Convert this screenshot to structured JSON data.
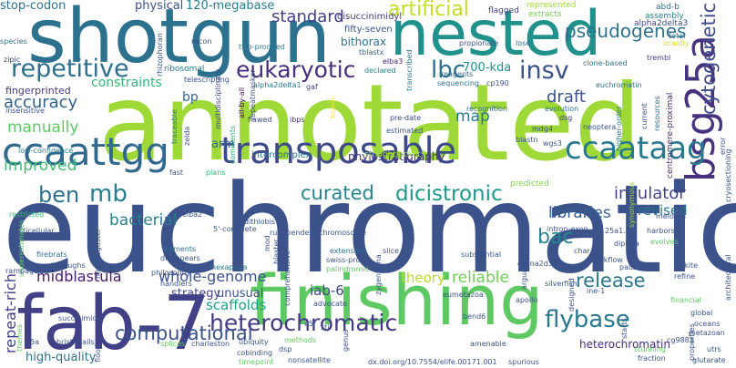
{
  "word_cloud": {
    "words": [
      {
        "id": "annotated",
        "text": "annotated",
        "color": "#9fd938"
      },
      {
        "id": "euchromatic",
        "text": "euchromatic",
        "color": "#3b528b"
      },
      {
        "id": "shotgun",
        "text": "shotgun",
        "color": "#2c718e"
      },
      {
        "id": "nested",
        "text": "nested",
        "color": "#21918c"
      },
      {
        "id": "fab-7",
        "text": "fab-7",
        "color": "#424086"
      },
      {
        "id": "finishing",
        "text": "finishing",
        "color": "#5ec962"
      },
      {
        "id": "ccaattgg",
        "text": "ccaattgg",
        "color": "#31688e"
      },
      {
        "id": "transposable",
        "text": "transposable",
        "color": "#3e4989"
      },
      {
        "id": "bsg25a",
        "text": "bsg25a",
        "color": "#46327e"
      },
      {
        "id": "heterochromatic",
        "text": "heterochromatic",
        "color": "#443983"
      },
      {
        "id": "ccaataag",
        "text": "ccaataag",
        "color": "#2a788e"
      },
      {
        "id": "repetitive",
        "text": "repetitive",
        "color": "#2e6f8e"
      },
      {
        "id": "eukaryotic",
        "text": "eukaryotic",
        "color": "#472d7b"
      },
      {
        "id": "insv",
        "text": "insv",
        "color": "#3b528b"
      },
      {
        "id": "lbc",
        "text": "lbc",
        "color": "#2c728e"
      },
      {
        "id": "mb",
        "text": "mb",
        "color": "#277f8e"
      },
      {
        "id": "dicistronic",
        "text": "dicistronic",
        "color": "#1f9a8a"
      },
      {
        "id": "curated",
        "text": "curated",
        "color": "#25848e"
      },
      {
        "id": "flybase",
        "text": "flybase",
        "color": "#2a788e"
      },
      {
        "id": "ben",
        "text": "ben",
        "color": "#2c718e"
      },
      {
        "id": "bac",
        "text": "bac",
        "color": "#24868e"
      },
      {
        "id": "cytogenetic",
        "text": "cytogenetic",
        "color": "#3e4c8a"
      },
      {
        "id": "artificial",
        "text": "artificial",
        "color": "#c2df23"
      },
      {
        "id": "pseudogenes",
        "text": "pseudogenes",
        "color": "#2c728e"
      },
      {
        "id": "release",
        "text": "release",
        "color": "#2a788e"
      },
      {
        "id": "insulator",
        "text": "insulator",
        "color": "#414487"
      },
      {
        "id": "accuracy",
        "text": "accuracy",
        "color": "#33638d"
      },
      {
        "id": "computational",
        "text": "computational",
        "color": "#3b528b"
      },
      {
        "id": "manually",
        "text": "manually",
        "color": "#5ec962"
      },
      {
        "id": "improved",
        "text": "improved",
        "color": "#3fbc73"
      },
      {
        "id": "standard",
        "text": "standard",
        "color": "#433e85"
      },
      {
        "id": "libraries",
        "text": "libraries",
        "color": "#35608d"
      },
      {
        "id": "draft",
        "text": "draft",
        "color": "#3b528b"
      },
      {
        "id": "whole-genome",
        "text": "whole-genome",
        "color": "#3b528b"
      },
      {
        "id": "midblastula",
        "text": "midblastula",
        "color": "#481a6c"
      },
      {
        "id": "reliable",
        "text": "reliable",
        "color": "#6ece58"
      },
      {
        "id": "scaffolds",
        "text": "scaffolds",
        "color": "#1fa187"
      },
      {
        "id": "high-quality",
        "text": "high-quality",
        "color": "#2c728e"
      },
      {
        "id": "repeat-rich",
        "text": "repeat-rich",
        "color": "#424086"
      },
      {
        "id": "iab-6",
        "text": "iab-6",
        "color": "#3e4989"
      },
      {
        "id": "theory",
        "text": "theory",
        "color": "#b5de2b"
      },
      {
        "id": "bacterial",
        "text": "bacterial",
        "color": "#277f8e"
      },
      {
        "id": "revised",
        "text": "revised",
        "color": "#2c718e"
      },
      {
        "id": "heterochromatin",
        "text": "heterochromatin",
        "color": "#472d7b"
      },
      {
        "id": "unusual",
        "text": "unusual",
        "color": "#3b528b"
      },
      {
        "id": "strategy",
        "text": "strategy",
        "color": "#414487"
      },
      {
        "id": "map",
        "text": "map",
        "color": "#2a788e"
      },
      {
        "id": "bp",
        "text": "bp",
        "color": "#31688e"
      },
      {
        "id": "arm",
        "text": "arm",
        "color": "#33638d"
      },
      {
        "id": "constraints",
        "text": "constraints",
        "color": "#35b779"
      },
      {
        "id": "bithorax",
        "text": "bithorax",
        "color": "#2c728e"
      },
      {
        "id": "700-kda",
        "text": "700-kda",
        "color": "#21918c"
      },
      {
        "id": "stop-codon",
        "text": "stop-codon",
        "color": "#2c728e"
      },
      {
        "id": "physical",
        "text": "physical",
        "color": "#3b528b"
      },
      {
        "id": "120-megabase",
        "text": "120-megabase",
        "color": "#277f8e"
      },
      {
        "id": "fingerprinted",
        "text": "fingerprinted",
        "color": "#443983"
      },
      {
        "id": "phylostratigraphy",
        "text": "phylostratigraphy",
        "color": "#46337f"
      },
      {
        "id": "intercomplex",
        "text": "intercomplex",
        "color": "#2d708e"
      },
      {
        "id": "fifty-seven",
        "text": "fifty-seven",
        "color": "#3b528b"
      },
      {
        "id": "disuccinimidyl",
        "text": "disuccinimidyl",
        "color": "#443983"
      },
      {
        "id": "flagged",
        "text": "flagged",
        "color": "#424086"
      },
      {
        "id": "represented",
        "text": "represented",
        "color": "#9fd938"
      },
      {
        "id": "extracts",
        "text": "extracts",
        "color": "#7ad151"
      },
      {
        "id": "abd-b",
        "text": "abd-b",
        "color": "#2c728e"
      },
      {
        "id": "assembly",
        "text": "assembly",
        "color": "#277f8e"
      },
      {
        "id": "alpha2delta3",
        "text": "alpha2delta3",
        "color": "#3e4989"
      },
      {
        "id": "total",
        "text": "total",
        "color": "#2d708e"
      },
      {
        "id": "scantly",
        "text": "scantly",
        "color": "#d8e219"
      },
      {
        "id": "tremble",
        "text": "trembl",
        "color": "#453781"
      },
      {
        "id": "species",
        "text": "species",
        "color": "#2c718e"
      },
      {
        "id": "zipic",
        "text": "zipic",
        "color": "#3e4989"
      },
      {
        "id": "recon",
        "text": "recon",
        "color": "#3b528b"
      },
      {
        "id": "ribosomal",
        "text": "ribosomal",
        "color": "#2a788e"
      },
      {
        "id": "rhizophoran",
        "text": "rhizophoran",
        "color": "#3b528b"
      },
      {
        "id": "two-pronged",
        "text": "two-pronged",
        "color": "#2a788e"
      },
      {
        "id": "tblastx",
        "text": "tblastx",
        "color": "#33638d"
      },
      {
        "id": "elba3",
        "text": "elba3",
        "color": "#482173"
      },
      {
        "id": "declared",
        "text": "declared",
        "color": "#277f8e"
      },
      {
        "id": "transcribed",
        "text": "transcribed",
        "color": "#2a788e"
      },
      {
        "id": "propionate",
        "text": "propionate",
        "color": "#3b528b"
      },
      {
        "id": "reagents",
        "text": "reagents",
        "color": "#31688e"
      },
      {
        "id": "lose",
        "text": "lose",
        "color": "#31688e"
      },
      {
        "id": "clone-based",
        "text": "clone-based",
        "color": "#2c728e"
      },
      {
        "id": "sequencing",
        "text": "sequencing",
        "color": "#2c718e"
      },
      {
        "id": "cp190",
        "text": "cp190",
        "color": "#3b528b"
      },
      {
        "id": "euchromatin",
        "text": "euchromatin",
        "color": "#2c718e"
      },
      {
        "id": "telescripting",
        "text": "telescripting",
        "color": "#3b528b"
      },
      {
        "id": "alpha2delta1",
        "text": "alpha2delta1",
        "color": "#2c728e"
      },
      {
        "id": "gaf",
        "text": "gaf",
        "color": "#424086"
      },
      {
        "id": "multidisciplinary",
        "text": "multidisciplinary",
        "color": "#3e4989"
      },
      {
        "id": "insensitive",
        "text": "insensitive",
        "color": "#3b528b"
      },
      {
        "id": "low-confidence",
        "text": "low-confidence",
        "color": "#2a788e"
      },
      {
        "id": "comments",
        "text": "comments",
        "color": "#27ad81"
      },
      {
        "id": "all-by-all",
        "text": "all-by-all",
        "color": "#440154"
      },
      {
        "id": "repeatmasker",
        "text": "repeatmasker",
        "color": "#3b528b"
      },
      {
        "id": "ibps",
        "text": "ibps",
        "color": "#46327e"
      },
      {
        "id": "flawed",
        "text": "flawed",
        "color": "#3e4989"
      },
      {
        "id": "traceable",
        "text": "traceable",
        "color": "#2c728e"
      },
      {
        "id": "zelda",
        "text": "zelda",
        "color": "#3b528b"
      },
      {
        "id": "fast",
        "text": "fast",
        "color": "#3b528b"
      },
      {
        "id": "plans",
        "text": "plans",
        "color": "#35b779"
      },
      {
        "id": "bump",
        "text": "bump",
        "color": "#fde725"
      },
      {
        "id": "pre-date",
        "text": "pre-date",
        "color": "#3e4989"
      },
      {
        "id": "recognition",
        "text": "recognition",
        "color": "#31688e"
      },
      {
        "id": "estimated",
        "text": "estimated",
        "color": "#3b528b"
      },
      {
        "id": "straightjacket",
        "text": "straightjacket",
        "color": "#a0da39"
      },
      {
        "id": "evolution",
        "text": "evolution",
        "color": "#2c728e"
      },
      {
        "id": "dsg",
        "text": "dsg",
        "color": "#443983"
      },
      {
        "id": "neoptera",
        "text": "neoptera",
        "color": "#3b528b"
      },
      {
        "id": "mdg4",
        "text": "mdg4",
        "color": "#3e4989"
      },
      {
        "id": "blastn",
        "text": "blastn",
        "color": "#3b528b"
      },
      {
        "id": "wgs3",
        "text": "wgs3",
        "color": "#3b528b"
      },
      {
        "id": "higher-order",
        "text": "higher-order",
        "color": "#2a788e"
      },
      {
        "id": "current",
        "text": "current",
        "color": "#3b528b"
      },
      {
        "id": "resources",
        "text": "resources",
        "color": "#2c728e"
      },
      {
        "id": "centromere-proximal",
        "text": "centromere-proximal",
        "color": "#472d7b"
      },
      {
        "id": "error",
        "text": "error",
        "color": "#3b528b"
      },
      {
        "id": "cryosectioning",
        "text": "cryosectioning",
        "color": "#3b528b"
      },
      {
        "id": "predicted",
        "text": "predicted",
        "color": "#84d44b"
      },
      {
        "id": "intron-exon",
        "text": "intron-exon",
        "color": "#3b528b"
      },
      {
        "id": "25a1.2",
        "text": "25a1.2",
        "color": "#3b528b"
      },
      {
        "id": "synonymous",
        "text": "synonymous",
        "color": "#9fd938"
      },
      {
        "id": "harbors",
        "text": "harbors",
        "color": "#3b528b"
      },
      {
        "id": "evolves",
        "text": "evolves",
        "color": "#5ec962"
      },
      {
        "id": "diplura",
        "text": "diplura",
        "color": "#3b528b"
      },
      {
        "id": "meioses",
        "text": "meioses",
        "color": "#3b528b"
      },
      {
        "id": "restricted",
        "text": "restricted",
        "color": "#3fbc73"
      },
      {
        "id": "multicellular",
        "text": "multicellular",
        "color": "#3b528b"
      },
      {
        "id": "elba2",
        "text": "elba2",
        "color": "#3b528b"
      },
      {
        "id": "5-complete",
        "text": "5'-complete",
        "color": "#3b528b"
      },
      {
        "id": "rule-benders",
        "text": "rule-benders",
        "color": "#3b528b"
      },
      {
        "id": "chromosome",
        "text": "chromosome",
        "color": "#3b528b"
      },
      {
        "id": "dithiobis",
        "text": "dithiobis",
        "color": "#3b528b"
      },
      {
        "id": "elements",
        "text": "elements",
        "color": "#2c728e"
      },
      {
        "id": "disappears",
        "text": "disappears",
        "color": "#3b528b"
      },
      {
        "id": "philosophy",
        "text": "philosophy",
        "color": "#3b528b"
      },
      {
        "id": "handlers",
        "text": "handlers",
        "color": "#3b528b"
      },
      {
        "id": "hexapoda",
        "text": "hexapoda",
        "color": "#2c728e"
      },
      {
        "id": "firebrats",
        "text": "firebrats",
        "color": "#2c728e"
      },
      {
        "id": "readthroughs",
        "text": "readthroughs",
        "color": "#3b528b"
      },
      {
        "id": "underestimates",
        "text": "underestimates",
        "color": "#5ec962"
      },
      {
        "id": "melanogaster",
        "text": "melanogaster",
        "color": "#3b528b"
      },
      {
        "id": "rampage",
        "text": "rampage",
        "color": "#3b528b"
      },
      {
        "id": "mod",
        "text": "mod",
        "color": "#3b528b"
      },
      {
        "id": "blaster",
        "text": "blaster",
        "color": "#3b528b"
      },
      {
        "id": "swiss-prot",
        "text": "swiss-prot",
        "color": "#3b528b"
      },
      {
        "id": "palindromic",
        "text": "palindromic",
        "color": "#5ec962"
      },
      {
        "id": "extensive",
        "text": "extensive",
        "color": "#2c728e"
      },
      {
        "id": "comprehensive",
        "text": "comprehensive",
        "color": "#3b528b"
      },
      {
        "id": "succinimidyl",
        "text": "succinimidyl",
        "color": "#3b528b"
      },
      {
        "id": "bristletails",
        "text": "bristletails",
        "color": "#3b528b"
      },
      {
        "id": "25a",
        "text": "25a",
        "color": "#3b528b"
      },
      {
        "id": "splices",
        "text": "splices",
        "color": "#5ec962"
      },
      {
        "id": "charleston",
        "text": "charleston",
        "color": "#3b528b"
      },
      {
        "id": "themes",
        "text": "themes",
        "color": "#5ec962"
      },
      {
        "id": "flood",
        "text": "flood",
        "color": "#3b528b"
      },
      {
        "id": "cobinding",
        "text": "cobinding",
        "color": "#3b528b"
      },
      {
        "id": "ubiquity",
        "text": "ubiquity",
        "color": "#3b528b"
      },
      {
        "id": "methods",
        "text": "methods",
        "color": "#5ec962"
      },
      {
        "id": "dsp",
        "text": "dsp",
        "color": "#3b528b"
      },
      {
        "id": "advocate",
        "text": "advocate",
        "color": "#3b528b"
      },
      {
        "id": "e5r",
        "text": "e5r",
        "color": "#3b528b"
      },
      {
        "id": "stj",
        "text": "stj",
        "color": "#3b528b"
      },
      {
        "id": "eumetazoa",
        "text": "eumetazoa",
        "color": "#3b528b"
      },
      {
        "id": "genus",
        "text": "genus",
        "color": "#3b528b"
      },
      {
        "id": "zygentoma",
        "text": "zygentoma",
        "color": "#3b528b"
      },
      {
        "id": "slice",
        "text": "slice",
        "color": "#3b528b"
      },
      {
        "id": "substantial",
        "text": "substantial",
        "color": "#3b528b"
      },
      {
        "id": "bend6",
        "text": "bend6",
        "color": "#3b528b"
      },
      {
        "id": "timepoint",
        "text": "timepoint",
        "color": "#5ec962"
      },
      {
        "id": "nonsatellite",
        "text": "nonsatellite",
        "color": "#3b528b"
      },
      {
        "id": "doi",
        "text": "dx.doi.org/10.7554/elife.00171.001",
        "color": "#3b528b"
      },
      {
        "id": "spurious",
        "text": "spurious",
        "color": "#3b528b"
      },
      {
        "id": "amenable",
        "text": "amenable",
        "color": "#3b528b"
      },
      {
        "id": "silverfish",
        "text": "silverfish",
        "color": "#3b528b"
      },
      {
        "id": "ine-1",
        "text": "ine-1",
        "color": "#3b528b"
      },
      {
        "id": "apollo",
        "text": "apollo",
        "color": "#3b528b"
      },
      {
        "id": "cacna2d3",
        "text": "cacna2d3",
        "color": "#3b528b"
      },
      {
        "id": "arguably",
        "text": "arguably",
        "color": "#3b528b"
      },
      {
        "id": "designed",
        "text": "designed",
        "color": "#3b528b"
      },
      {
        "id": "pausing",
        "text": "pausing",
        "color": "#3b528b"
      },
      {
        "id": "char",
        "text": "char",
        "color": "#3b528b"
      },
      {
        "id": "workflow",
        "text": "workflow",
        "color": "#3b528b"
      },
      {
        "id": "1kite",
        "text": "1kite",
        "color": "#3b528b"
      },
      {
        "id": "refine",
        "text": "refine",
        "color": "#3b528b"
      },
      {
        "id": "architectural",
        "text": "architectural",
        "color": "#3b528b"
      },
      {
        "id": "financial",
        "text": "financial",
        "color": "#5ec962"
      },
      {
        "id": "global",
        "text": "global",
        "color": "#3b528b"
      },
      {
        "id": "oceans",
        "text": "oceans",
        "color": "#3b528b"
      },
      {
        "id": "metazoan",
        "text": "metazoan",
        "color": "#3b528b"
      },
      {
        "id": "cg9883",
        "text": "cg9883",
        "color": "#3b528b"
      },
      {
        "id": "starts",
        "text": "starts",
        "color": "#3b528b"
      },
      {
        "id": "stunning",
        "text": "stunning",
        "color": "#5ec962"
      },
      {
        "id": "fraction",
        "text": "fraction",
        "color": "#3b528b"
      },
      {
        "id": "properties",
        "text": "properties",
        "color": "#3b528b"
      },
      {
        "id": "utrs",
        "text": "utrs",
        "color": "#3b528b"
      },
      {
        "id": "glutarate",
        "text": "glutarate",
        "color": "#3b528b"
      }
    ]
  }
}
